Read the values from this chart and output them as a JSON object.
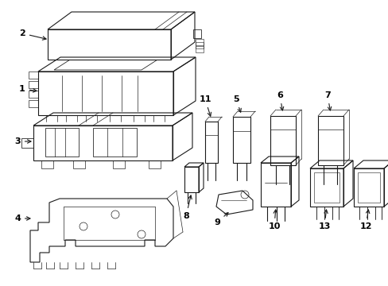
{
  "bg": "#ffffff",
  "lc": "#1a1a1a",
  "lw": 0.8,
  "fig_w": 4.89,
  "fig_h": 3.6,
  "dpi": 100
}
